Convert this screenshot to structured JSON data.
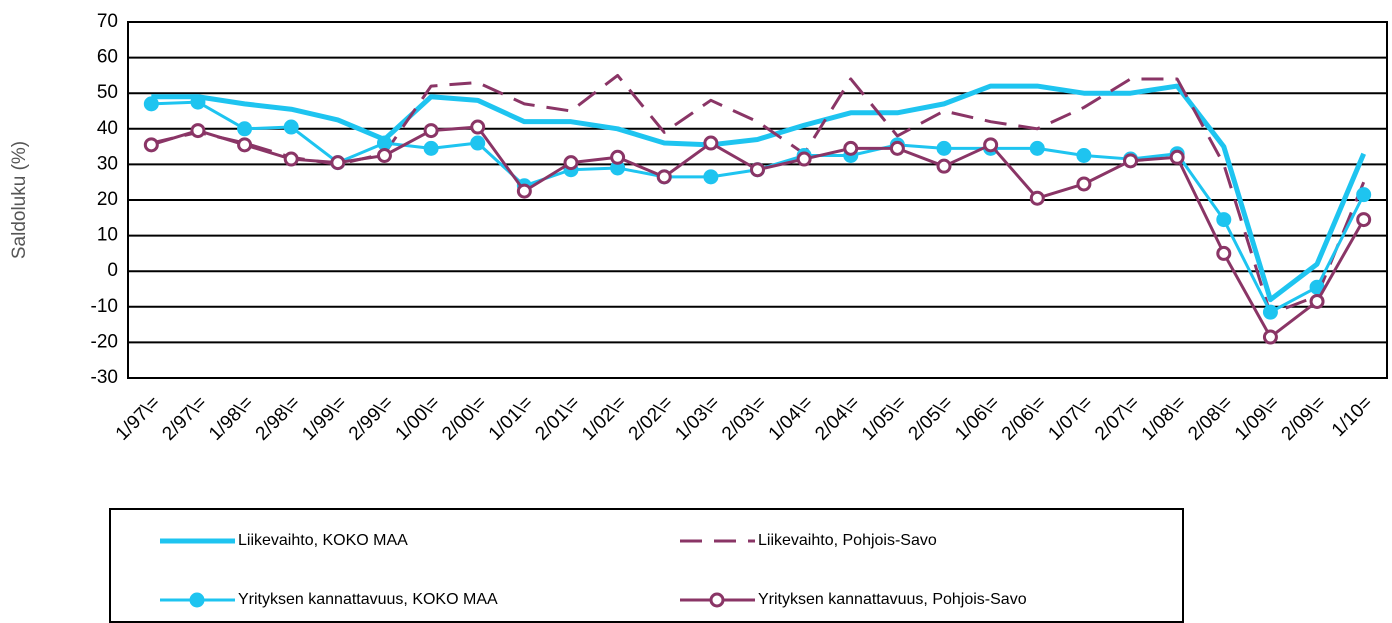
{
  "chart_data": {
    "type": "line",
    "y_label": "Saldoluku (%)",
    "categories": [
      "1/97\\=",
      "2/97\\=",
      "1/98\\=",
      "2/98\\=",
      "1/99\\=",
      "2/99\\=",
      "1/00\\=",
      "2/00\\=",
      "1/01\\=",
      "2/01\\=",
      "1/02\\=",
      "2/02\\=",
      "1/03\\=",
      "2/03\\=",
      "1/04\\=",
      "2/04\\=",
      "1/05\\=",
      "2/05\\=",
      "1/06\\=",
      "2/06\\=",
      "1/07\\=",
      "2/07\\=",
      "1/08\\=",
      "2/08\\=",
      "1/09\\=",
      "2/09\\=",
      "1/10="
    ],
    "series": [
      {
        "name": "Liikevaihto, KOKO MAA",
        "color": "#1ec4f0",
        "width": 5,
        "dash": false,
        "marker": "none",
        "values": [
          49,
          49,
          47,
          45.5,
          42.5,
          37,
          49,
          48,
          42,
          42,
          40,
          36,
          35.5,
          37,
          41,
          44.5,
          44.5,
          47,
          52,
          52,
          50,
          50,
          52,
          35,
          -8,
          2,
          33
        ]
      },
      {
        "name": "Liikevaihto, Pohjois-Savo",
        "color": "#8a3566",
        "width": 3,
        "dash": true,
        "marker": "none",
        "values": [
          36,
          39,
          36,
          32,
          30,
          33,
          52,
          53,
          47,
          45,
          55,
          39,
          48,
          42,
          33,
          54,
          38,
          45,
          42,
          40,
          46,
          54,
          54,
          30,
          -12,
          -7,
          25
        ]
      },
      {
        "name": "Yrityksen kannattavuus, KOKO MAA",
        "color": "#1ec4f0",
        "width": 3,
        "dash": false,
        "marker": "filled",
        "values": [
          47,
          47.5,
          40,
          40.5,
          30.5,
          36,
          34.5,
          36,
          24,
          28.5,
          29,
          26.5,
          26.5,
          28.5,
          32.5,
          32.5,
          35.5,
          34.5,
          34.5,
          34.5,
          32.5,
          31.5,
          33,
          14.5,
          -11.5,
          -4.5,
          21.5
        ]
      },
      {
        "name": "Yrityksen kannattavuus, Pohjois-Savo",
        "color": "#8a3566",
        "width": 3,
        "dash": false,
        "marker": "open",
        "values": [
          35.5,
          39.5,
          35.5,
          31.5,
          30.5,
          32.5,
          39.5,
          40.5,
          22.5,
          30.5,
          32,
          26.5,
          36,
          28.5,
          31.5,
          34.5,
          34.5,
          29.5,
          35.5,
          20.5,
          24.5,
          31,
          32,
          5,
          -18.5,
          -8.5,
          14.5
        ]
      }
    ],
    "ylim": [
      -30,
      70
    ],
    "yticks": [
      -30,
      -20,
      -10,
      0,
      10,
      20,
      30,
      40,
      50,
      60,
      70
    ],
    "grid": true
  }
}
